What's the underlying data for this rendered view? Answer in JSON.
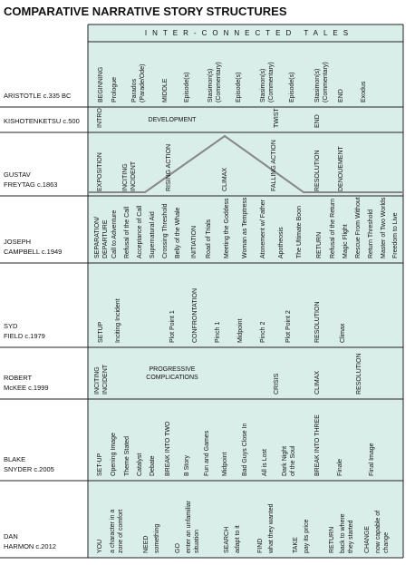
{
  "title": "COMPARATIVE NARRATIVE STORY STRUCTURES",
  "header": "INTER-CONNECTED TALES",
  "rows": [
    {
      "name": [
        "ARISTOTLE c.335 BC"
      ],
      "items": [
        {
          "text": "BEGINNING",
          "color": "#e2572b"
        },
        {
          "text": "Prologue"
        },
        {
          "text": [
            "Parados",
            "(Parade/Ode)"
          ]
        },
        {
          "text": "MIDDLE",
          "color": "#e2572b"
        },
        {
          "text": "Episode(s)"
        },
        {
          "text": [
            "Stasimon(s)",
            "(Commentary)"
          ]
        },
        {
          "text": "Episode(s)"
        },
        {
          "text": [
            "Stasimon(s)",
            "(Commentary)"
          ]
        },
        {
          "text": "Episode(s)"
        },
        {
          "text": [
            "Stasimon(s)",
            "(Commentary)"
          ]
        },
        {
          "text": "END",
          "color": "#e2572b"
        },
        {
          "text": "Exodus"
        }
      ]
    },
    {
      "name": [
        "KISHOTENKETSU c.500"
      ],
      "items": [
        {
          "text": "INTRO",
          "color": "#e2572b"
        },
        {
          "text": "DEVELOPMENT",
          "color": "#e2572b"
        },
        {
          "text": "TWIST",
          "color": "#e2572b"
        },
        {
          "text": "END",
          "color": "#e2572b"
        }
      ]
    },
    {
      "name": [
        "GUSTAV",
        "FREYTAG c.1863"
      ],
      "items": [
        {
          "text": "EXPOSITION"
        },
        {
          "text": [
            "INCITING",
            "INCIDENT"
          ],
          "color": "#e2572b"
        },
        {
          "text": "RISING ACTION"
        },
        {
          "text": "CLIMAX",
          "color": "#e2572b"
        },
        {
          "text": "FALLING ACTION"
        },
        {
          "text": "RESOLUTION",
          "color": "#e2572b"
        },
        {
          "text": "DENOUEMENT"
        }
      ]
    },
    {
      "name": [
        "JOSEPH",
        "CAMPBELL c.1949"
      ],
      "items": [
        {
          "text": [
            "SEPARATION/",
            "DEPARTURE"
          ],
          "color": "#e2572b"
        },
        {
          "text": "Call to Adventure"
        },
        {
          "text": "Refusal of the Call"
        },
        {
          "text": "Acceptance of Call"
        },
        {
          "text": "Supernatural Aid"
        },
        {
          "text": "Crossing Threshold"
        },
        {
          "text": "Belly of the Whale"
        },
        {
          "text": "INITIATION",
          "color": "#e2572b"
        },
        {
          "text": "Road of Trials"
        },
        {
          "text": "Meeting the Goddess"
        },
        {
          "text": "Woman as Temptress"
        },
        {
          "text": "Atonement w/ Father"
        },
        {
          "text": "Apotheosis"
        },
        {
          "text": "The Ultimate Boon"
        },
        {
          "text": "RETURN",
          "color": "#e2572b"
        },
        {
          "text": "Refusal of the Return"
        },
        {
          "text": "Magic Flight"
        },
        {
          "text": "Rescue From Without"
        },
        {
          "text": "Return Threshold"
        },
        {
          "text": "Master of Two Worlds"
        },
        {
          "text": "Freedom to Live"
        }
      ]
    },
    {
      "name": [
        "SYD",
        "FIELD c.1979"
      ],
      "items": [
        {
          "text": "SETUP",
          "color": "#e2572b"
        },
        {
          "text": "Inciting Incident"
        },
        {
          "text": "Plot Point 1"
        },
        {
          "text": "CONFRONTATION",
          "color": "#e2572b"
        },
        {
          "text": "Pinch 1"
        },
        {
          "text": "Midpoint"
        },
        {
          "text": "Pinch 2"
        },
        {
          "text": "Plot Point 2"
        },
        {
          "text": "RESOLUTION",
          "color": "#e2572b"
        },
        {
          "text": "Climax"
        }
      ]
    },
    {
      "name": [
        "ROBERT",
        "McKEE c.1999"
      ],
      "items": [
        {
          "text": [
            "INCITING",
            "INCIDENT"
          ],
          "color": "#e2572b"
        },
        {
          "text": [
            "PROGRESSIVE",
            "COMPLICATIONS"
          ],
          "color": "#e2572b"
        },
        {
          "text": "CRISIS",
          "color": "#e2572b"
        },
        {
          "text": "CLIMAX",
          "color": "#e2572b"
        },
        {
          "text": "RESOLUTION",
          "color": "#e2572b"
        }
      ]
    },
    {
      "name": [
        "BLAKE",
        "SNYDER c.2005"
      ],
      "items": [
        {
          "text": "SET-UP",
          "color": "#e2572b"
        },
        {
          "text": "Opening Image"
        },
        {
          "text": "Theme Stated"
        },
        {
          "text": "Catalyst"
        },
        {
          "text": "Debate"
        },
        {
          "text": "BREAK INTO TWO",
          "color": "#e2572b"
        },
        {
          "text": "B Story"
        },
        {
          "text": "Fun and Games"
        },
        {
          "text": "Midpoint"
        },
        {
          "text": "Bad Guys Close In"
        },
        {
          "text": "All is Lost"
        },
        {
          "text": [
            "Dark Night",
            "of the Soul"
          ]
        },
        {
          "text": "BREAK INTO THREE",
          "color": "#e2572b"
        },
        {
          "text": "Finale"
        },
        {
          "text": "Final Image"
        }
      ]
    },
    {
      "name": [
        "DAN",
        "HARMON c.2012"
      ],
      "items": [
        {
          "text": "YOU",
          "color": "#e2572b"
        },
        {
          "text": [
            "a character in a",
            "zone of comfort"
          ]
        },
        {
          "text": "NEED",
          "color": "#e2572b"
        },
        {
          "text": "something"
        },
        {
          "text": "GO",
          "color": "#e2572b"
        },
        {
          "text": [
            "enter an unfamiliar",
            "situation"
          ]
        },
        {
          "text": "SEARCH",
          "color": "#e2572b"
        },
        {
          "text": "adapt to it"
        },
        {
          "text": "FIND",
          "color": "#e2572b"
        },
        {
          "text": "what they wanted"
        },
        {
          "text": "TAKE",
          "color": "#e2572b"
        },
        {
          "text": "pay its price"
        },
        {
          "text": "RETURN",
          "color": "#e2572b"
        },
        {
          "text": [
            "back to where",
            "they started"
          ]
        },
        {
          "text": "CHANGE",
          "color": "#e2572b"
        },
        {
          "text": [
            "now capable of",
            "change"
          ]
        }
      ]
    }
  ]
}
